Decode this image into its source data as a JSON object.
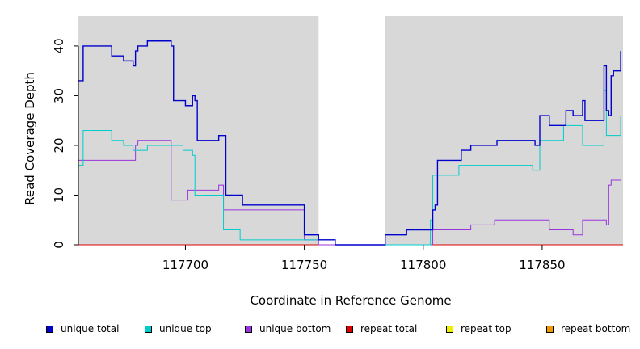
{
  "chart_data": {
    "type": "line",
    "xlabel": "Coordinate in Reference Genome",
    "ylabel": "Read Coverage Depth",
    "xlim": [
      117655,
      117884
    ],
    "ylim": [
      -0.5,
      46
    ],
    "x_ticks": [
      117700,
      117750,
      117800,
      117850
    ],
    "x_tick_labels": [
      "117700",
      "117750",
      "117800",
      "117850"
    ],
    "y_ticks": [
      0,
      10,
      20,
      30,
      40
    ],
    "y_tick_labels": [
      "0",
      "10",
      "20",
      "30",
      "40"
    ],
    "background_color": "#d8d8d8",
    "gap_region": [
      117756,
      117784
    ],
    "legend_position": "bottom",
    "series": [
      {
        "name": "unique total",
        "color": "#0000cc",
        "points": [
          [
            117655,
            33
          ],
          [
            117657,
            33
          ],
          [
            117657,
            40
          ],
          [
            117669,
            40
          ],
          [
            117669,
            38
          ],
          [
            117674,
            38
          ],
          [
            117674,
            37
          ],
          [
            117678,
            37
          ],
          [
            117678,
            36
          ],
          [
            117679,
            36
          ],
          [
            117679,
            39
          ],
          [
            117680,
            39
          ],
          [
            117680,
            40
          ],
          [
            117684,
            40
          ],
          [
            117684,
            41
          ],
          [
            117694,
            41
          ],
          [
            117694,
            40
          ],
          [
            117695,
            40
          ],
          [
            117695,
            29
          ],
          [
            117700,
            29
          ],
          [
            117700,
            28
          ],
          [
            117703,
            28
          ],
          [
            117703,
            30
          ],
          [
            117704,
            30
          ],
          [
            117704,
            29
          ],
          [
            117705,
            29
          ],
          [
            117705,
            21
          ],
          [
            117714,
            21
          ],
          [
            117714,
            22
          ],
          [
            117717,
            22
          ],
          [
            117717,
            10
          ],
          [
            117724,
            10
          ],
          [
            117724,
            8
          ],
          [
            117750,
            8
          ],
          [
            117750,
            2
          ],
          [
            117756,
            2
          ],
          [
            117756,
            1
          ],
          [
            117763,
            1
          ],
          [
            117763,
            0
          ],
          [
            117784,
            0
          ],
          [
            117784,
            2
          ],
          [
            117793,
            2
          ],
          [
            117793,
            3
          ],
          [
            117804,
            3
          ],
          [
            117804,
            7
          ],
          [
            117805,
            7
          ],
          [
            117805,
            8
          ],
          [
            117806,
            8
          ],
          [
            117806,
            17
          ],
          [
            117816,
            17
          ],
          [
            117816,
            19
          ],
          [
            117820,
            19
          ],
          [
            117820,
            20
          ],
          [
            117831,
            20
          ],
          [
            117831,
            21
          ],
          [
            117847,
            21
          ],
          [
            117847,
            20
          ],
          [
            117849,
            20
          ],
          [
            117849,
            26
          ],
          [
            117853,
            26
          ],
          [
            117853,
            24
          ],
          [
            117860,
            24
          ],
          [
            117860,
            27
          ],
          [
            117863,
            27
          ],
          [
            117863,
            26
          ],
          [
            117867,
            26
          ],
          [
            117867,
            29
          ],
          [
            117868,
            29
          ],
          [
            117868,
            25
          ],
          [
            117876,
            25
          ],
          [
            117876,
            36
          ],
          [
            117877,
            36
          ],
          [
            117877,
            27
          ],
          [
            117878,
            27
          ],
          [
            117878,
            26
          ],
          [
            117879,
            26
          ],
          [
            117879,
            34
          ],
          [
            117880,
            34
          ],
          [
            117880,
            35
          ],
          [
            117883,
            35
          ],
          [
            117883,
            39
          ]
        ]
      },
      {
        "name": "unique top",
        "color": "#00cccc",
        "points": [
          [
            117655,
            16
          ],
          [
            117657,
            16
          ],
          [
            117657,
            23
          ],
          [
            117669,
            23
          ],
          [
            117669,
            21
          ],
          [
            117674,
            21
          ],
          [
            117674,
            20
          ],
          [
            117678,
            20
          ],
          [
            117678,
            19
          ],
          [
            117684,
            19
          ],
          [
            117684,
            20
          ],
          [
            117699,
            20
          ],
          [
            117699,
            19
          ],
          [
            117703,
            19
          ],
          [
            117703,
            18
          ],
          [
            117704,
            18
          ],
          [
            117704,
            10
          ],
          [
            117716,
            10
          ],
          [
            117716,
            3
          ],
          [
            117723,
            3
          ],
          [
            117723,
            1
          ],
          [
            117763,
            1
          ],
          [
            117763,
            0
          ],
          [
            117803,
            0
          ],
          [
            117803,
            5
          ],
          [
            117804,
            5
          ],
          [
            117804,
            14
          ],
          [
            117815,
            14
          ],
          [
            117815,
            16
          ],
          [
            117846,
            16
          ],
          [
            117846,
            15
          ],
          [
            117849,
            15
          ],
          [
            117849,
            21
          ],
          [
            117859,
            21
          ],
          [
            117859,
            24
          ],
          [
            117867,
            24
          ],
          [
            117867,
            20
          ],
          [
            117876,
            20
          ],
          [
            117876,
            31
          ],
          [
            117877,
            31
          ],
          [
            117877,
            22
          ],
          [
            117883,
            22
          ],
          [
            117883,
            26
          ]
        ]
      },
      {
        "name": "unique bottom",
        "color": "#9933dd",
        "points": [
          [
            117655,
            17
          ],
          [
            117679,
            17
          ],
          [
            117679,
            20
          ],
          [
            117680,
            20
          ],
          [
            117680,
            21
          ],
          [
            117694,
            21
          ],
          [
            117694,
            9
          ],
          [
            117701,
            9
          ],
          [
            117701,
            11
          ],
          [
            117714,
            11
          ],
          [
            117714,
            12
          ],
          [
            117716,
            12
          ],
          [
            117716,
            7
          ],
          [
            117750,
            7
          ],
          [
            117750,
            1
          ],
          [
            117756,
            1
          ],
          [
            117756,
            0
          ],
          [
            117804,
            0
          ],
          [
            117804,
            3
          ],
          [
            117820,
            3
          ],
          [
            117820,
            4
          ],
          [
            117830,
            4
          ],
          [
            117830,
            5
          ],
          [
            117853,
            5
          ],
          [
            117853,
            3
          ],
          [
            117863,
            3
          ],
          [
            117863,
            2
          ],
          [
            117867,
            2
          ],
          [
            117867,
            5
          ],
          [
            117877,
            5
          ],
          [
            117877,
            4
          ],
          [
            117878,
            4
          ],
          [
            117878,
            12
          ],
          [
            117879,
            12
          ],
          [
            117879,
            13
          ],
          [
            117883,
            13
          ]
        ]
      },
      {
        "name": "repeat total",
        "color": "#dd0000",
        "points": [
          [
            117655,
            0
          ],
          [
            117884,
            0
          ]
        ]
      },
      {
        "name": "repeat top",
        "color": "#eeee00",
        "points": [
          [
            117655,
            0
          ],
          [
            117884,
            0
          ]
        ]
      },
      {
        "name": "repeat bottom",
        "color": "#ee9900",
        "points": [
          [
            117655,
            0
          ],
          [
            117884,
            0
          ]
        ]
      }
    ]
  }
}
